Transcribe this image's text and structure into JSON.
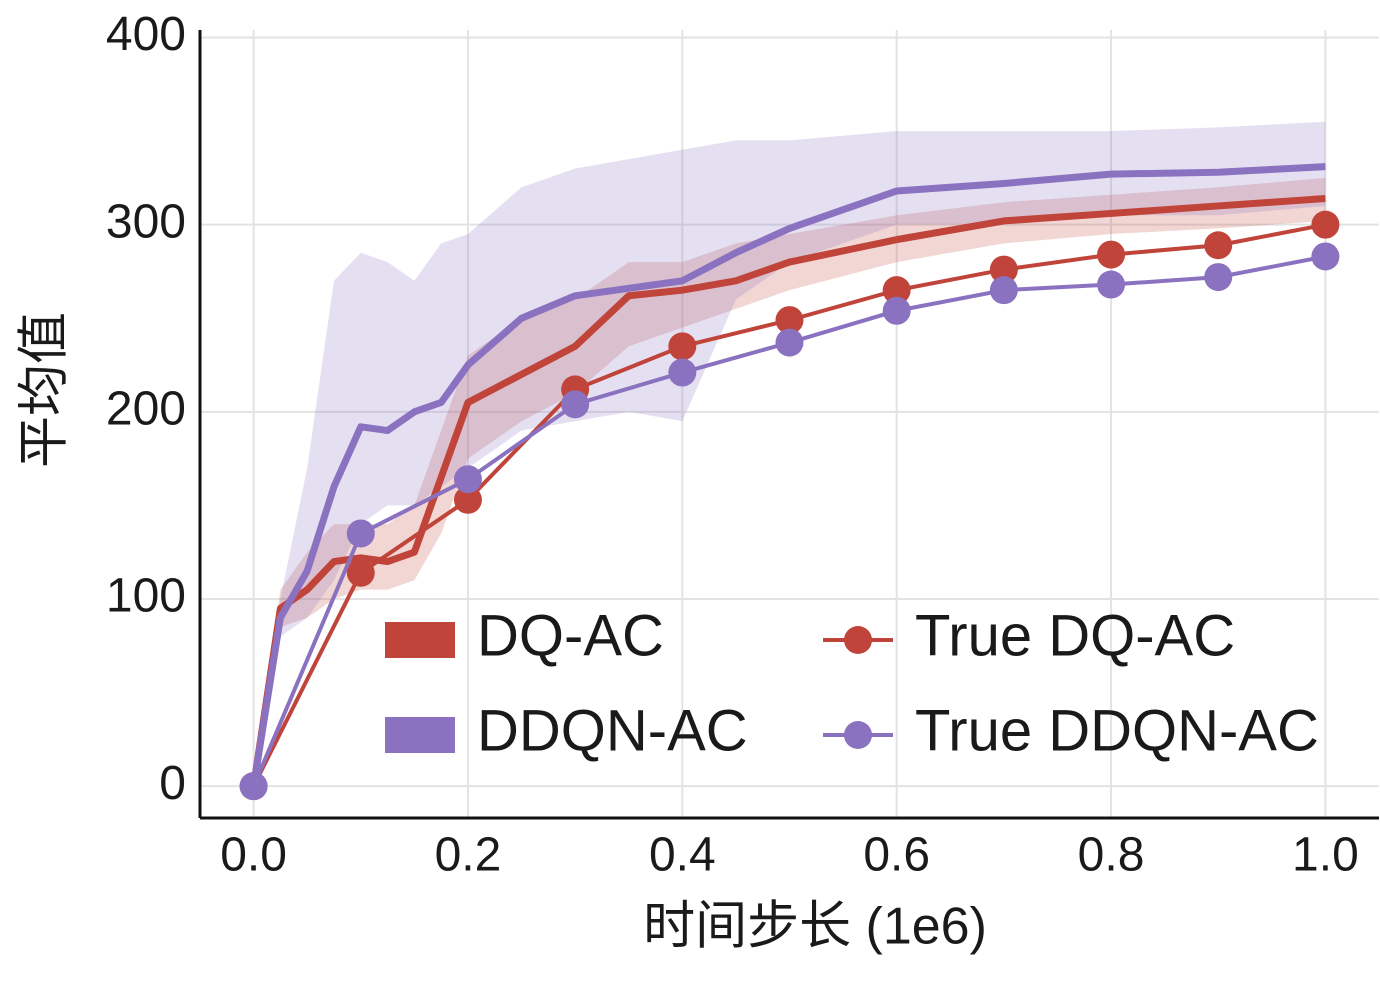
{
  "chart_data": {
    "type": "line",
    "xlabel": "时间步长 (1e6)",
    "ylabel": "平均值",
    "xlim": [
      -0.05,
      1.05
    ],
    "ylim": [
      -17,
      404
    ],
    "xticks": [
      {
        "value": 0,
        "label": "0.0"
      },
      0.2,
      0.4,
      0.6,
      0.8,
      {
        "value": 1,
        "label": "1.0"
      }
    ],
    "yticks": [
      0,
      100,
      200,
      300,
      400
    ],
    "grid": true,
    "legend": "lower right",
    "series": [
      {
        "name": "DQ-AC",
        "color": "#c0443a",
        "x": [
          0,
          0.025,
          0.05,
          0.075,
          0.1,
          0.125,
          0.15,
          0.175,
          0.2,
          0.25,
          0.3,
          0.35,
          0.4,
          0.45,
          0.5,
          0.6,
          0.7,
          0.8,
          0.9,
          1.0
        ],
        "values": [
          0,
          95,
          105,
          120,
          122,
          120,
          125,
          165,
          205,
          220,
          235,
          262,
          265,
          270,
          280,
          292,
          302,
          306,
          310,
          314
        ],
        "lower": [
          0,
          85,
          90,
          100,
          105,
          105,
          110,
          135,
          175,
          195,
          210,
          235,
          245,
          255,
          265,
          280,
          290,
          295,
          298,
          302
        ],
        "upper": [
          0,
          105,
          125,
          140,
          140,
          140,
          150,
          190,
          230,
          250,
          260,
          280,
          280,
          290,
          295,
          305,
          312,
          316,
          320,
          325
        ]
      },
      {
        "name": "DDQN-AC",
        "color": "#8a72c0",
        "x": [
          0,
          0.025,
          0.05,
          0.075,
          0.1,
          0.125,
          0.15,
          0.175,
          0.2,
          0.25,
          0.3,
          0.35,
          0.4,
          0.45,
          0.5,
          0.6,
          0.7,
          0.8,
          0.9,
          1.0
        ],
        "values": [
          0,
          90,
          115,
          160,
          192,
          190,
          200,
          205,
          225,
          250,
          262,
          266,
          270,
          285,
          298,
          318,
          322,
          327,
          328,
          331
        ],
        "lower": [
          0,
          80,
          90,
          110,
          140,
          150,
          150,
          160,
          170,
          190,
          195,
          200,
          195,
          260,
          280,
          300,
          300,
          305,
          305,
          310
        ],
        "upper": [
          0,
          100,
          170,
          270,
          285,
          280,
          270,
          290,
          295,
          320,
          330,
          335,
          340,
          345,
          345,
          350,
          350,
          350,
          352,
          355
        ]
      },
      {
        "name": "True DQ-AC",
        "color": "#c0443a",
        "markers": true,
        "x": [
          0,
          0.1,
          0.2,
          0.3,
          0.4,
          0.5,
          0.6,
          0.7,
          0.8,
          0.9,
          1.0
        ],
        "values": [
          0,
          114,
          153,
          212,
          235,
          249,
          265,
          276,
          284,
          289,
          300
        ]
      },
      {
        "name": "True DDQN-AC",
        "color": "#8a72c0",
        "markers": true,
        "x": [
          0,
          0.1,
          0.2,
          0.3,
          0.4,
          0.5,
          0.6,
          0.7,
          0.8,
          0.9,
          1.0
        ],
        "values": [
          0,
          135,
          164,
          204,
          221,
          237,
          254,
          265,
          268,
          272,
          283
        ]
      }
    ]
  }
}
